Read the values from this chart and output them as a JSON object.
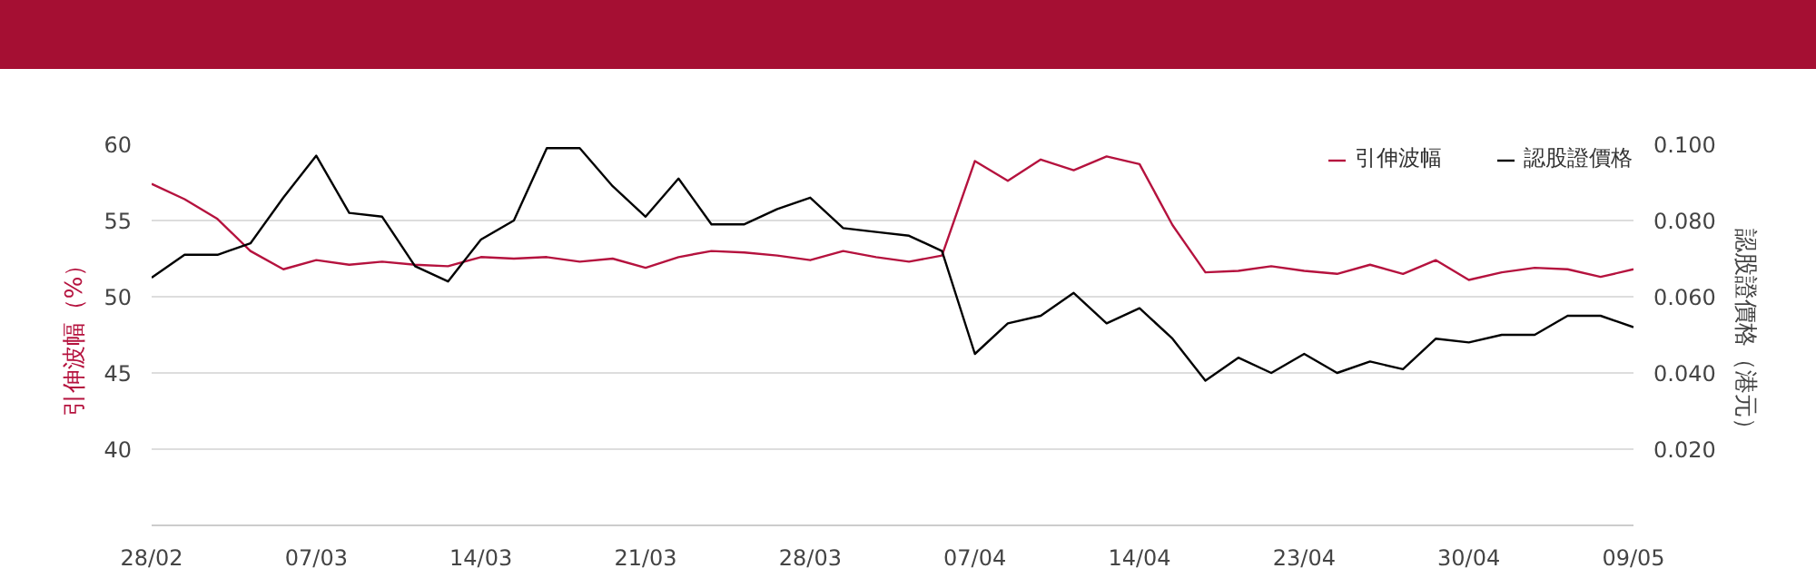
{
  "chart_data": {
    "type": "line",
    "categories": [
      "28/02",
      null,
      null,
      null,
      null,
      "07/03",
      null,
      null,
      null,
      null,
      "14/03",
      null,
      null,
      null,
      null,
      "21/03",
      null,
      null,
      null,
      null,
      "28/03",
      null,
      null,
      null,
      null,
      "07/04",
      null,
      null,
      null,
      null,
      "14/04",
      null,
      null,
      null,
      null,
      "23/04",
      null,
      null,
      null,
      null,
      "30/04",
      null,
      null,
      null,
      null,
      "09/05"
    ],
    "series": [
      {
        "name": "引伸波幅",
        "color": "#b5123e",
        "values": [
          57.4,
          56.4,
          55.1,
          53.0,
          51.8,
          52.4,
          52.1,
          52.3,
          52.1,
          52.0,
          52.6,
          52.5,
          52.6,
          52.3,
          52.5,
          51.9,
          52.6,
          53.0,
          52.9,
          52.7,
          52.4,
          53.0,
          52.6,
          52.3,
          52.7,
          58.9,
          57.6,
          59.0,
          58.3,
          59.2,
          58.7,
          54.7,
          51.6,
          51.7,
          52.0,
          51.7,
          51.5,
          52.1,
          51.5,
          52.4,
          51.1,
          51.6,
          51.9,
          51.8,
          51.3,
          51.8
        ]
      },
      {
        "name": "認股證價格",
        "color": "#000000",
        "axis": "y2",
        "values": [
          0.065,
          0.071,
          0.071,
          0.074,
          0.086,
          0.097,
          0.082,
          0.081,
          0.068,
          0.064,
          0.075,
          0.08,
          0.099,
          0.099,
          0.089,
          0.081,
          0.091,
          0.079,
          0.079,
          0.083,
          0.086,
          0.078,
          0.077,
          0.076,
          0.072,
          0.045,
          0.053,
          0.055,
          0.061,
          0.053,
          0.057,
          0.049,
          0.038,
          0.044,
          0.04,
          0.045,
          0.04,
          0.043,
          0.041,
          0.049,
          0.048,
          0.05,
          0.05,
          0.055,
          0.055,
          0.052
        ]
      }
    ],
    "ylabel": "引伸波幅（%）",
    "y2label": "認股證價格（港元）",
    "ylim": [
      35,
      60
    ],
    "yticks": [
      40,
      45,
      50,
      55,
      60
    ],
    "y2lim": [
      0,
      0.1
    ],
    "y2ticks": [
      {
        "value": 0.02,
        "label": "0.020"
      },
      {
        "value": 0.04,
        "label": "0.040"
      },
      {
        "value": 0.06,
        "label": "0.060"
      },
      {
        "value": 0.08,
        "label": "0.080"
      },
      {
        "value": 0.1,
        "label": "0.100"
      }
    ],
    "grid": "y",
    "legend": "top right",
    "marker": "none",
    "line_style": "solid"
  }
}
